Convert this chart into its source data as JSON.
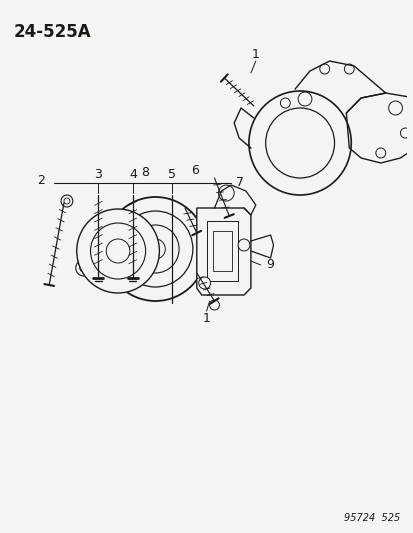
{
  "bg_color": "#f5f4f0",
  "line_color": "#1a1a1a",
  "title": "24-525A",
  "footer": "95724  525",
  "title_fontsize": 12,
  "footer_fontsize": 7
}
